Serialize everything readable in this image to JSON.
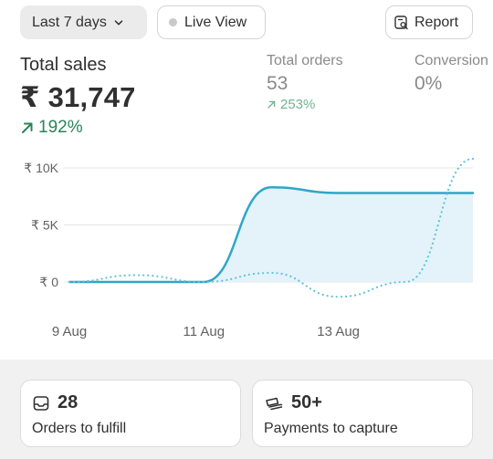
{
  "toolbar": {
    "date_range_label": "Last 7 days",
    "live_view_label": "Live View",
    "report_label": "Report"
  },
  "metrics": {
    "total_sales": {
      "label": "Total sales",
      "value": "₹ 31,747",
      "change": "192%"
    },
    "total_orders": {
      "label": "Total orders",
      "value": "53",
      "change": "253%"
    },
    "conversion": {
      "label": "Conversion",
      "value": "0%"
    }
  },
  "chart_data": {
    "type": "line",
    "y_tick_labels": [
      "₹ 10K",
      "₹ 5K",
      "₹ 0"
    ],
    "x_tick_labels": [
      "9 Aug",
      "11 Aug",
      "13 Aug"
    ],
    "x": [
      "9 Aug",
      "10 Aug",
      "11 Aug",
      "12 Aug",
      "13 Aug",
      "14 Aug",
      "15 Aug"
    ],
    "ylim": [
      0,
      10000
    ],
    "series": [
      {
        "style": "solid area",
        "values": [
          0,
          0,
          0,
          8300,
          7800,
          7800,
          7800
        ]
      },
      {
        "style": "dotted comparison",
        "values": [
          0,
          600,
          0,
          800,
          -1300,
          0,
          10800
        ]
      }
    ],
    "colors": {
      "current": "#2fa6c8",
      "comparison": "#62c3df",
      "area": "#e3f3f9",
      "grid": "#e4e4e4"
    }
  },
  "cards": {
    "orders_to_fulfill": {
      "count": "28",
      "label": "Orders to fulfill"
    },
    "payments_to_capture": {
      "count": "50+",
      "label": "Payments to capture"
    }
  }
}
